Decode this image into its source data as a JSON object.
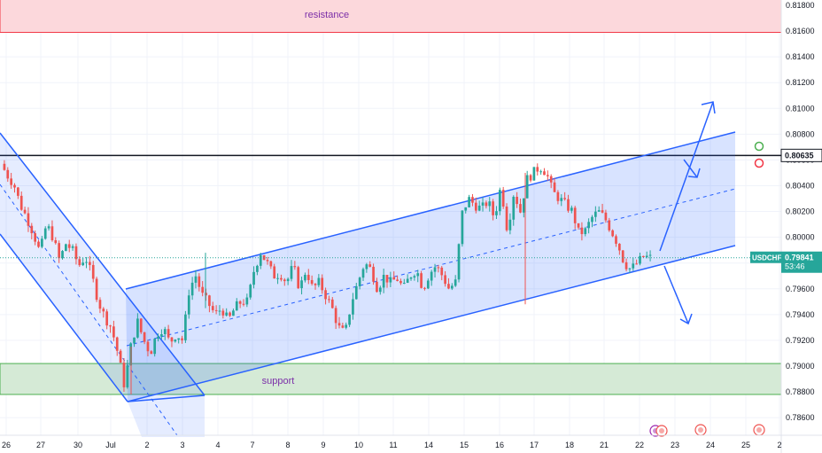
{
  "chart_data": {
    "type": "candlestick",
    "symbol": "USDCHF",
    "last_price": "0.79841",
    "countdown": "53:46",
    "level_label": "0.80635",
    "y_axis": {
      "ylim": [
        0.7852,
        0.8189
      ],
      "ticks": [
        "0.81800",
        "0.81600",
        "0.81400",
        "0.81200",
        "0.81000",
        "0.80800",
        "0.80600",
        "0.80400",
        "0.80200",
        "0.80000",
        "0.79800",
        "0.79600",
        "0.79400",
        "0.79200",
        "0.79000",
        "0.78800",
        "0.78600"
      ]
    },
    "x_axis": {
      "ticks": [
        "26",
        "27",
        "30",
        "Jul",
        "2",
        "3",
        "4",
        "7",
        "8",
        "9",
        "10",
        "11",
        "14",
        "15",
        "16",
        "17",
        "18",
        "21",
        "22",
        "23",
        "24",
        "25",
        "2"
      ]
    },
    "zones": [
      {
        "name": "resistance",
        "label": "resistance",
        "from": 0.8159,
        "to": 0.8189,
        "color": "#f23645"
      },
      {
        "name": "support",
        "label": "support",
        "from": 0.7878,
        "to": 0.7902,
        "color": "#4caf50"
      }
    ],
    "horizontal_line": 0.80635,
    "close_path": [
      0.8057,
      0.8048,
      0.8041,
      0.8025,
      0.8015,
      0.8003,
      0.7988,
      0.801,
      0.8,
      0.7982,
      0.7995,
      0.799,
      0.7978,
      0.7985,
      0.797,
      0.795,
      0.7938,
      0.793,
      0.791,
      0.7885,
      0.7915,
      0.7935,
      0.792,
      0.791,
      0.7925,
      0.793,
      0.7918,
      0.7925,
      0.792,
      0.796,
      0.797,
      0.7955,
      0.7948,
      0.794,
      0.7945,
      0.7935,
      0.7945,
      0.795,
      0.795,
      0.7975,
      0.7988,
      0.798,
      0.797,
      0.7972,
      0.7965,
      0.7978,
      0.796,
      0.7975,
      0.796,
      0.7965,
      0.7955,
      0.7945,
      0.793,
      0.7925,
      0.795,
      0.7965,
      0.798,
      0.7975,
      0.796,
      0.797,
      0.7965,
      0.7968,
      0.796,
      0.797,
      0.7975,
      0.796,
      0.7972,
      0.7978,
      0.797,
      0.796,
      0.7965,
      0.8018,
      0.803,
      0.8025,
      0.8022,
      0.8028,
      0.8015,
      0.804,
      0.8005,
      0.8035,
      0.802,
      0.8045,
      0.805,
      0.8055,
      0.805,
      0.8035,
      0.803,
      0.8025,
      0.802,
      0.8003,
      0.8005,
      0.8015,
      0.802,
      0.8015,
      0.8005,
      0.7995,
      0.798,
      0.7975,
      0.798,
      0.7985,
      0.7984
    ],
    "channels": [
      {
        "name": "descending-channel",
        "color": "#2962ff"
      },
      {
        "name": "ascending-channel",
        "color": "#2962ff"
      }
    ],
    "forecast_arrows": [
      {
        "name": "breakout-up"
      },
      {
        "name": "channel-high"
      },
      {
        "name": "breakdown-down"
      }
    ]
  },
  "colors": {
    "up": "#26a69a",
    "down": "#ef5350",
    "channel": "#2962ff",
    "last_price_tag": "#26a69a",
    "level_tag": "#ffffff"
  }
}
